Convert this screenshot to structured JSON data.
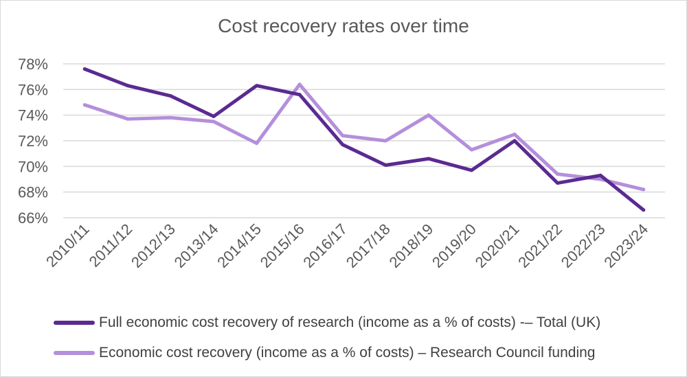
{
  "chart_data": {
    "type": "line",
    "title": "Cost recovery rates over time",
    "xlabel": "",
    "ylabel": "",
    "ylim": [
      66,
      78
    ],
    "yticks": [
      66,
      68,
      70,
      72,
      74,
      76,
      78
    ],
    "ytick_labels": [
      "66%",
      "68%",
      "70%",
      "72%",
      "74%",
      "76%",
      "78%"
    ],
    "grid": true,
    "legend_position": "bottom",
    "categories": [
      "2010/11",
      "2011/12",
      "2012/13",
      "2013/14",
      "2014/15",
      "2015/16",
      "2016/17",
      "2017/18",
      "2018/19",
      "2019/20",
      "2020/21",
      "2021/22",
      "2022/23",
      "2023/24"
    ],
    "series": [
      {
        "name": "Full economic cost recovery of research (income as a % of costs) -– Total (UK)",
        "color": "#5b2a91",
        "values": [
          77.6,
          76.3,
          75.5,
          73.9,
          76.3,
          75.6,
          71.7,
          70.1,
          70.6,
          69.7,
          72.0,
          68.7,
          69.3,
          66.6
        ]
      },
      {
        "name": "Economic cost recovery (income as a % of costs) – Research Council funding",
        "color": "#b48fdb",
        "values": [
          74.8,
          73.7,
          73.8,
          73.5,
          71.8,
          76.4,
          72.4,
          72.0,
          74.0,
          71.3,
          72.5,
          69.4,
          69.0,
          68.2
        ]
      }
    ]
  }
}
